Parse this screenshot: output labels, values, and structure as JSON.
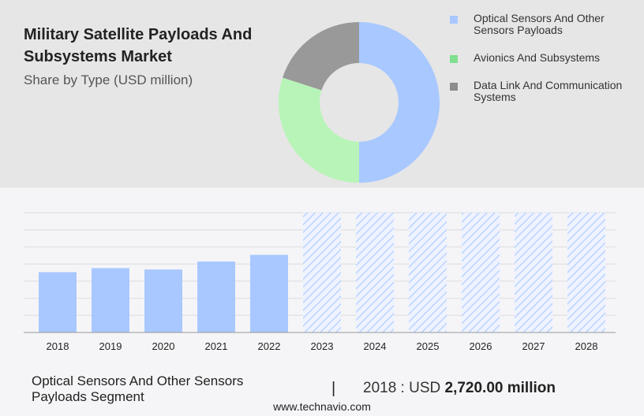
{
  "header": {
    "title": "Military Satellite Payloads And Subsystems Market",
    "subtitle": "Share by Type (USD million)"
  },
  "legend": [
    {
      "label": "Optical Sensors And Other Sensors Payloads",
      "color": "#a8c8ff"
    },
    {
      "label": "Avionics And Subsystems",
      "color": "#7fe08f"
    },
    {
      "label": "Data Link And Communication Systems",
      "color": "#8c8c8c"
    }
  ],
  "chart_data": [
    {
      "type": "pie",
      "slices": [
        {
          "name": "Optical Sensors And Other Sensors Payloads",
          "value": 50,
          "color": "#a8c8ff"
        },
        {
          "name": "Avionics And Subsystems",
          "value": 30,
          "color": "#b8f4b8"
        },
        {
          "name": "Data Link And Communication Systems",
          "value": 20,
          "color": "#999999"
        }
      ],
      "donut": true
    },
    {
      "type": "bar",
      "categories": [
        "2018",
        "2019",
        "2020",
        "2021",
        "2022",
        "2023",
        "2024",
        "2025",
        "2026",
        "2027",
        "2028"
      ],
      "values": [
        2720,
        2900,
        2840,
        3200,
        3500,
        null,
        null,
        null,
        null,
        null,
        null
      ],
      "forecast_from": "2023",
      "ylim": [
        0,
        5400
      ],
      "grid": true,
      "color": "#a8c8ff",
      "forecast_color": "#c4d9ff"
    }
  ],
  "segment": {
    "label": "Optical Sensors And Other Sensors Payloads Segment",
    "divider": "|",
    "year_prefix": "2018 : USD",
    "value": "2,720.00 million"
  },
  "footer": "www.technavio.com"
}
